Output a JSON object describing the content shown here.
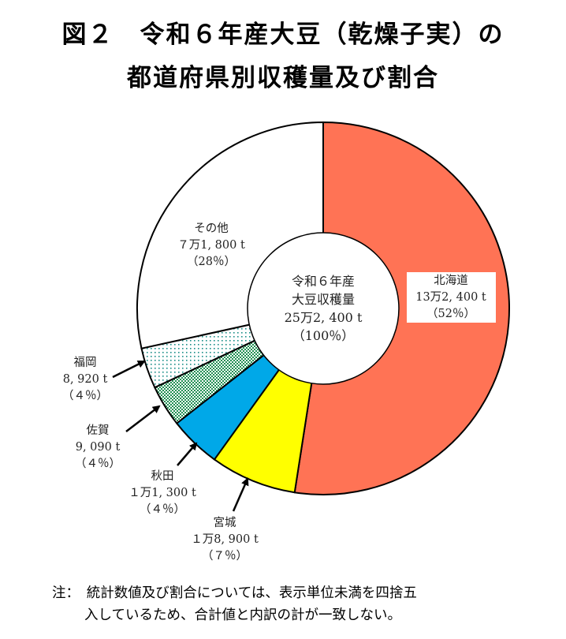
{
  "title": {
    "line1": "図２　令和６年産大豆（乾燥子実）の",
    "line2": "都道府県別収穫量及び割合"
  },
  "chart_data": {
    "type": "pie",
    "style": "donut",
    "unit": "t",
    "center_label": [
      "令和６年産",
      "大豆収穫量",
      "25万2, 400 t",
      "（100％）"
    ],
    "total": 252400,
    "slices": [
      {
        "name": "北海道",
        "value": 132400,
        "value_label": "13万2, 400 t",
        "percent": 52,
        "percent_label": "（52％）",
        "color": "#ff7355",
        "pattern": "solid"
      },
      {
        "name": "宮城",
        "value": 18900,
        "value_label": "１万8, 900 t",
        "percent": 7,
        "percent_label": "（７％）",
        "color": "#ffff00",
        "pattern": "solid"
      },
      {
        "name": "秋田",
        "value": 11300,
        "value_label": "１万1, 300 t",
        "percent": 4,
        "percent_label": "（４％）",
        "color": "#00a8e8",
        "pattern": "solid"
      },
      {
        "name": "佐賀",
        "value": 9090,
        "value_label": "9, 090 t",
        "percent": 4,
        "percent_label": "（４％）",
        "color": "#2e9e5e",
        "pattern": "dense-dots"
      },
      {
        "name": "福岡",
        "value": 8920,
        "value_label": "8, 920 t",
        "percent": 4,
        "percent_label": "（４％）",
        "color": "#2a9d8f",
        "pattern": "sparse-dots"
      },
      {
        "name": "その他",
        "value": 71800,
        "value_label": "７万1, 800 t",
        "percent": 28,
        "percent_label": "（28％）",
        "color": "#ffffff",
        "pattern": "solid"
      }
    ],
    "start": "12 o'clock",
    "direction": "clockwise"
  },
  "note": {
    "line1": "注：　統計数値及び割合については、表示単位未満を四捨五",
    "line2": "入しているため、合計値と内訳の計が一致しない。"
  }
}
